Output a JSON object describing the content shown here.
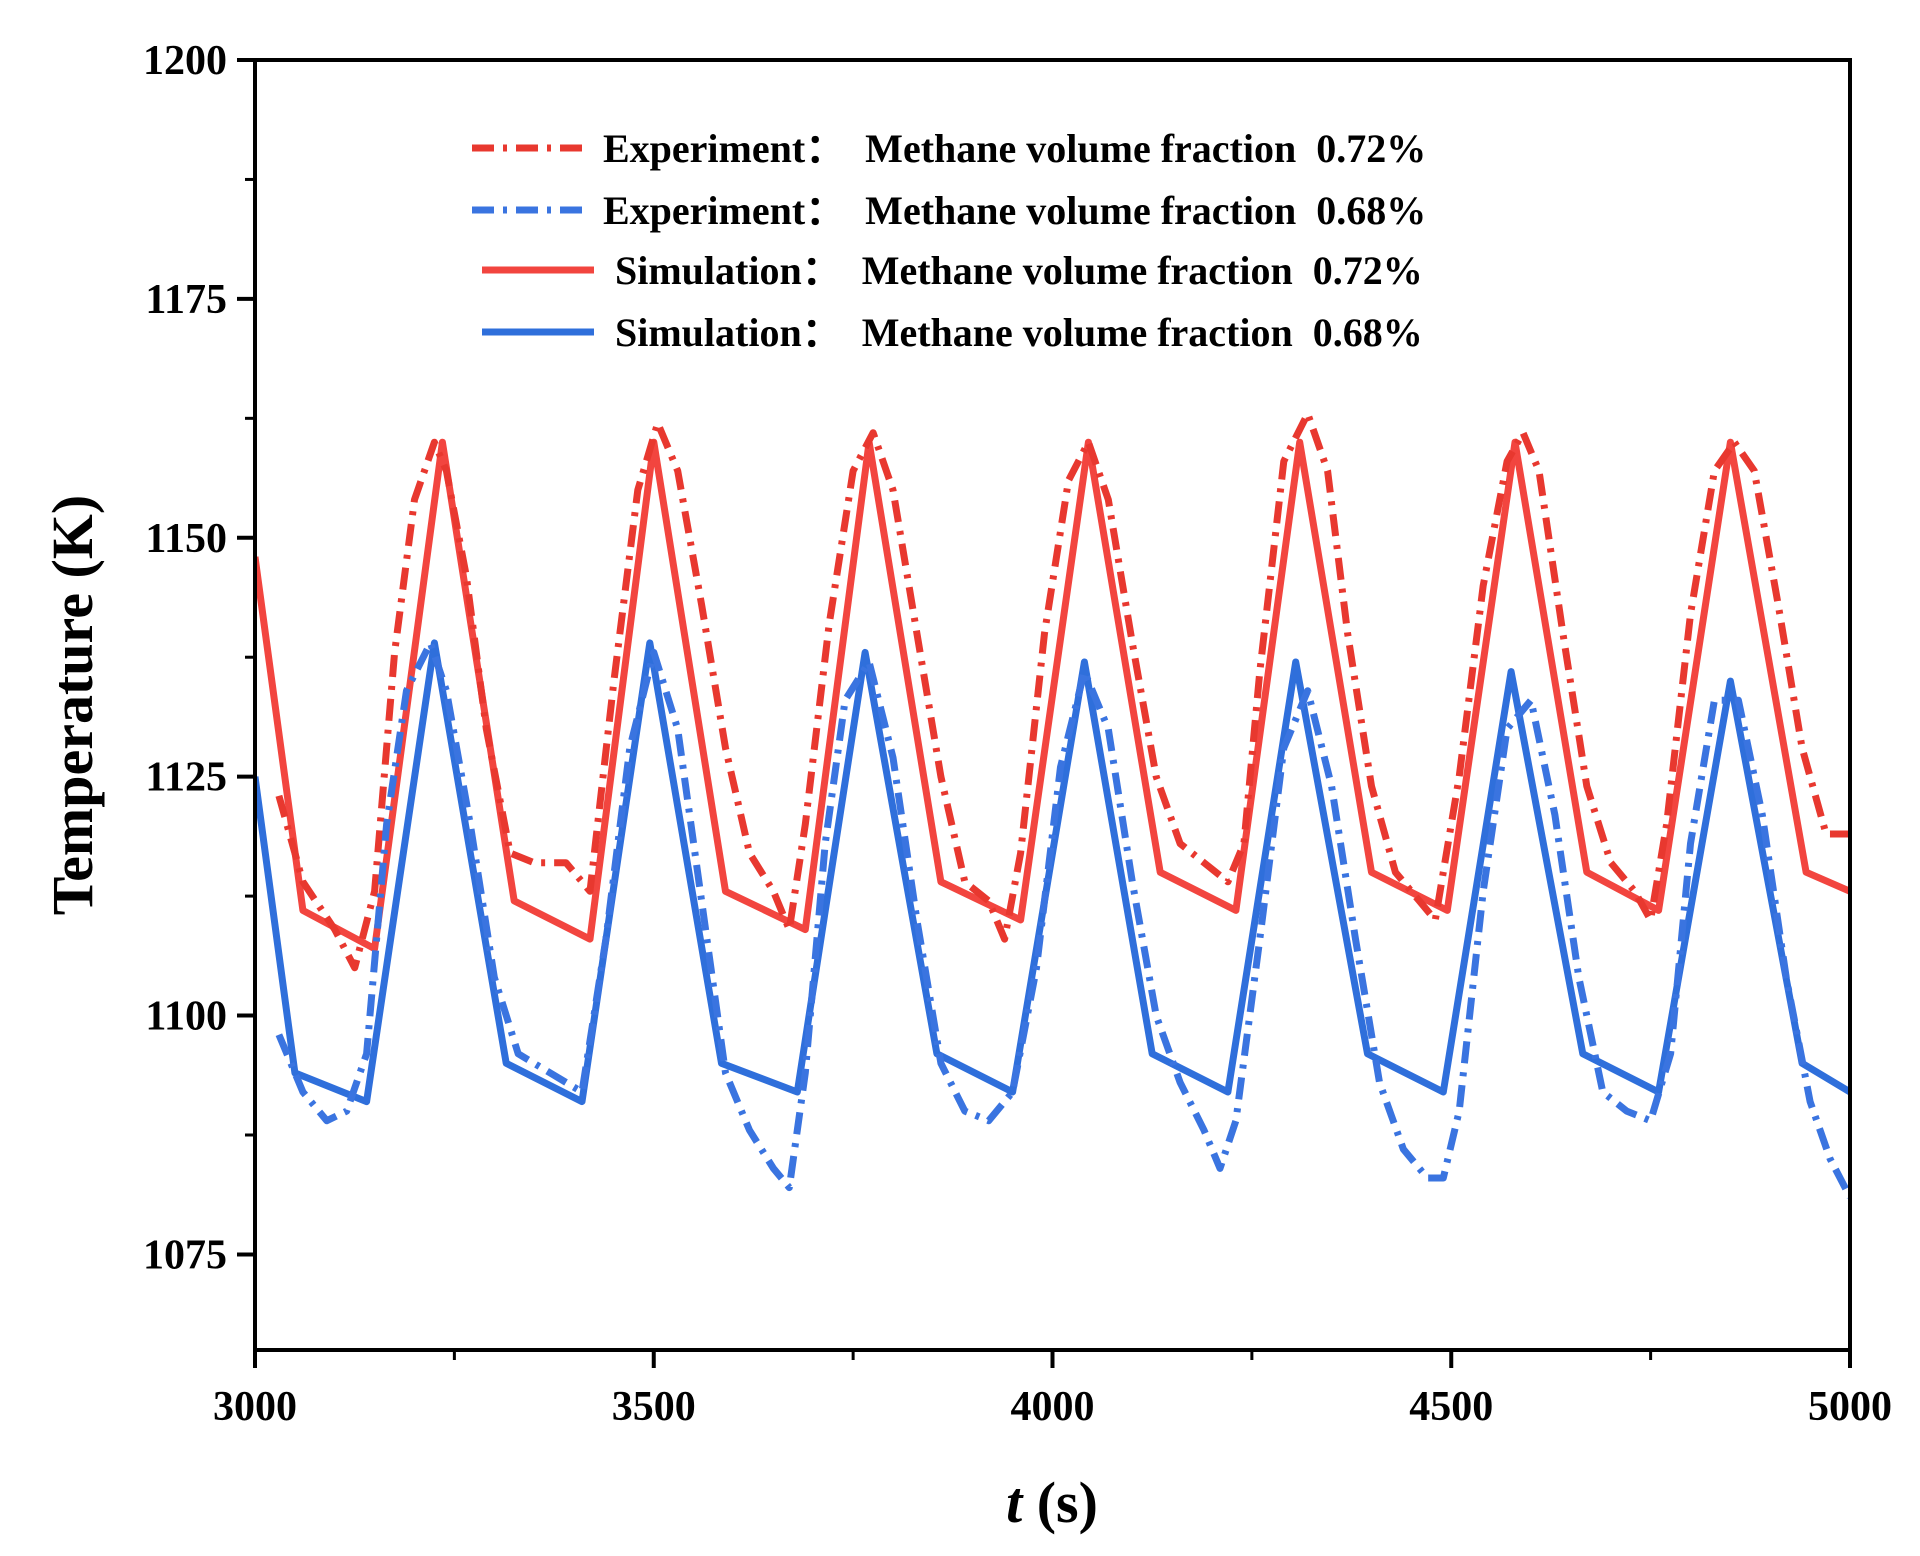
{
  "chart_data": {
    "type": "line",
    "title": "",
    "xlabel": "t (s)",
    "xlabel_italic_part": "t",
    "xlabel_rest": " (s)",
    "ylabel": "Temperature (K)",
    "xlim": [
      3000,
      5000
    ],
    "ylim": [
      1065,
      1200
    ],
    "xticks": [
      3000,
      3500,
      4000,
      4500,
      5000
    ],
    "yticks": [
      1075,
      1100,
      1125,
      1150,
      1175,
      1200
    ],
    "grid": false,
    "legend_position": "top-center",
    "series": [
      {
        "name": "Experiment：  Methane volume fraction  0.72%",
        "style": "dash-dot",
        "color": "#e8382f",
        "x": [
          3030,
          3060,
          3100,
          3125,
          3150,
          3175,
          3200,
          3225,
          3240,
          3265,
          3290,
          3320,
          3350,
          3390,
          3420,
          3450,
          3480,
          3505,
          3530,
          3560,
          3590,
          3620,
          3650,
          3670,
          3690,
          3720,
          3750,
          3775,
          3800,
          3830,
          3860,
          3890,
          3920,
          3940,
          3960,
          3990,
          4020,
          4045,
          4070,
          4100,
          4130,
          4160,
          4190,
          4220,
          4240,
          4260,
          4290,
          4320,
          4345,
          4370,
          4400,
          4430,
          4460,
          4480,
          4510,
          4540,
          4570,
          4590,
          4610,
          4640,
          4670,
          4700,
          4730,
          4750,
          4770,
          4800,
          4830,
          4855,
          4880,
          4910,
          4940,
          4970,
          5000
        ],
        "values": [
          1123,
          1114,
          1109,
          1105,
          1113,
          1138,
          1154,
          1160,
          1157,
          1146,
          1130,
          1117,
          1116,
          1116,
          1113,
          1135,
          1155,
          1162,
          1157,
          1143,
          1128,
          1117,
          1113,
          1109,
          1120,
          1141,
          1157,
          1161,
          1155,
          1140,
          1125,
          1114,
          1112,
          1108,
          1117,
          1140,
          1156,
          1160,
          1154,
          1139,
          1125,
          1118,
          1116,
          1114,
          1118,
          1136,
          1158,
          1163,
          1157,
          1140,
          1124,
          1115,
          1112,
          1110,
          1125,
          1145,
          1158,
          1161,
          1157,
          1140,
          1124,
          1116,
          1113,
          1110,
          1120,
          1142,
          1157,
          1160,
          1157,
          1143,
          1128,
          1119,
          1119
        ]
      },
      {
        "name": "Experiment：  Methane volume fraction  0.68%",
        "style": "dash-dot",
        "color": "#3a74e0",
        "x": [
          3030,
          3060,
          3090,
          3115,
          3140,
          3165,
          3190,
          3220,
          3240,
          3270,
          3300,
          3330,
          3370,
          3410,
          3440,
          3470,
          3500,
          3530,
          3560,
          3590,
          3620,
          3650,
          3670,
          3690,
          3715,
          3740,
          3770,
          3800,
          3830,
          3860,
          3890,
          3920,
          3950,
          3980,
          4010,
          4040,
          4070,
          4100,
          4130,
          4160,
          4190,
          4210,
          4230,
          4260,
          4290,
          4320,
          4350,
          4380,
          4410,
          4440,
          4470,
          4490,
          4510,
          4540,
          4570,
          4600,
          4630,
          4660,
          4690,
          4720,
          4750,
          4775,
          4800,
          4830,
          4860,
          4890,
          4920,
          4950,
          4975,
          5000
        ],
        "values": [
          1098,
          1092,
          1089,
          1090,
          1096,
          1120,
          1134,
          1139,
          1134,
          1120,
          1104,
          1096,
          1094,
          1092,
          1108,
          1128,
          1138,
          1130,
          1112,
          1094,
          1088,
          1084,
          1082,
          1094,
          1118,
          1133,
          1137,
          1127,
          1110,
          1095,
          1090,
          1089,
          1092,
          1105,
          1126,
          1136,
          1130,
          1114,
          1100,
          1093,
          1088,
          1084,
          1089,
          1108,
          1128,
          1134,
          1124,
          1108,
          1093,
          1086,
          1083,
          1083,
          1090,
          1113,
          1130,
          1133,
          1121,
          1104,
          1092,
          1090,
          1089,
          1096,
          1118,
          1133,
          1133,
          1121,
          1104,
          1091,
          1085,
          1081
        ]
      },
      {
        "name": "Simulation：  Methane volume fraction  0.72%",
        "style": "solid",
        "color": "#f2453f",
        "x": [
          3000,
          3060,
          3150,
          3235,
          3325,
          3420,
          3500,
          3590,
          3690,
          3770,
          3860,
          3960,
          4045,
          4135,
          4230,
          4310,
          4400,
          4495,
          4580,
          4670,
          4760,
          4850,
          4945,
          5000
        ],
        "values": [
          1148,
          1111,
          1107,
          1160,
          1112,
          1108,
          1160,
          1113,
          1109,
          1160,
          1114,
          1110,
          1160,
          1115,
          1111,
          1160,
          1115,
          1111,
          1160,
          1115,
          1111,
          1160,
          1115,
          1113
        ]
      },
      {
        "name": "Simulation：  Methane volume fraction  0.68%",
        "style": "solid",
        "color": "#2f6fdb",
        "x": [
          3000,
          3050,
          3140,
          3225,
          3315,
          3410,
          3495,
          3585,
          3680,
          3765,
          3855,
          3950,
          4040,
          4125,
          4220,
          4305,
          4395,
          4490,
          4575,
          4665,
          4760,
          4850,
          4940,
          5000
        ],
        "values": [
          1125,
          1094,
          1091,
          1139,
          1095,
          1091,
          1139,
          1095,
          1092,
          1138,
          1096,
          1092,
          1137,
          1096,
          1092,
          1137,
          1096,
          1092,
          1136,
          1096,
          1092,
          1135,
          1095,
          1092
        ]
      }
    ]
  }
}
